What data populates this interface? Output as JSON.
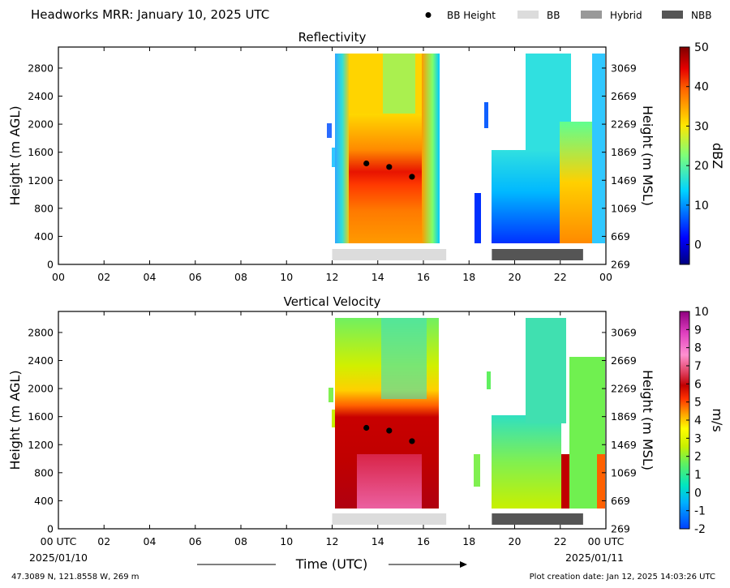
{
  "title": "Headworks MRR:  January 10, 2025 UTC",
  "legend": [
    {
      "label": "BB Height",
      "kind": "dot",
      "color": "#000000"
    },
    {
      "label": "BB",
      "kind": "box",
      "color": "#dcdcdc"
    },
    {
      "label": "Hybrid",
      "kind": "box",
      "color": "#999999"
    },
    {
      "label": "NBB",
      "kind": "box",
      "color": "#555555"
    }
  ],
  "x_axis": {
    "label": "Time (UTC)",
    "ticks": [
      "00",
      "02",
      "04",
      "06",
      "08",
      "10",
      "12",
      "14",
      "16",
      "18",
      "20",
      "22",
      "00"
    ],
    "bottom_ticks": [
      "00 UTC",
      "02",
      "04",
      "06",
      "08",
      "10",
      "12",
      "14",
      "16",
      "18",
      "20",
      "22",
      "00 UTC"
    ],
    "start_date": "2025/01/10",
    "end_date": "2025/01/11",
    "range_hours": [
      0,
      24
    ]
  },
  "footer": {
    "location": "47.3089 N, 121.8558 W, 269 m",
    "created": "Plot creation date: Jan 12, 2025 14:03:26 UTC"
  },
  "chart_data": [
    {
      "type": "heatmap",
      "title": "Reflectivity",
      "ylabel": "Height (m AGL)",
      "y2label": "Height (m MSL)",
      "yticks": [
        "0",
        "400",
        "800",
        "1200",
        "1600",
        "2000",
        "2400",
        "2800"
      ],
      "y2ticks": [
        "269",
        "669",
        "1069",
        "1469",
        "1869",
        "2269",
        "2669",
        "3069"
      ],
      "ylim": [
        0,
        3100
      ],
      "colorbar": {
        "label": "dBZ",
        "range": [
          -5,
          50
        ],
        "ticks": [
          "0",
          "10",
          "20",
          "30",
          "40",
          "50"
        ],
        "tick_values": [
          0,
          10,
          20,
          30,
          40,
          50
        ],
        "colormap": "jet"
      },
      "bb_height_points": [
        {
          "x": 13.5,
          "y": 1440
        },
        {
          "x": 14.5,
          "y": 1390
        },
        {
          "x": 15.5,
          "y": 1250
        }
      ],
      "bb_type_bars": [
        {
          "type": "BB",
          "start": 12.0,
          "end": 17.0
        },
        {
          "type": "NBB",
          "start": 19.0,
          "end": 23.0
        }
      ]
    },
    {
      "type": "heatmap",
      "title": "Vertical Velocity",
      "ylabel": "Height (m AGL)",
      "y2label": "Height (m MSL)",
      "yticks": [
        "0",
        "400",
        "800",
        "1200",
        "1600",
        "2000",
        "2400",
        "2800"
      ],
      "y2ticks": [
        "269",
        "669",
        "1069",
        "1469",
        "1869",
        "2269",
        "2669",
        "3069"
      ],
      "ylim": [
        0,
        3100
      ],
      "colorbar": {
        "label": "m/s",
        "range": [
          -2,
          10
        ],
        "ticks": [
          "-2",
          "-1",
          "0",
          "1",
          "2",
          "3",
          "4",
          "5",
          "6",
          "7",
          "8",
          "9",
          "10"
        ],
        "tick_values": [
          -2,
          -1,
          0,
          1,
          2,
          3,
          4,
          5,
          6,
          7,
          8,
          9,
          10
        ],
        "colormap": "velocity"
      },
      "bb_height_points": [
        {
          "x": 13.5,
          "y": 1440
        },
        {
          "x": 14.5,
          "y": 1400
        },
        {
          "x": 15.5,
          "y": 1250
        }
      ],
      "bb_type_bars": [
        {
          "type": "BB",
          "start": 12.0,
          "end": 17.0
        },
        {
          "type": "NBB",
          "start": 19.0,
          "end": 23.0
        }
      ]
    }
  ]
}
